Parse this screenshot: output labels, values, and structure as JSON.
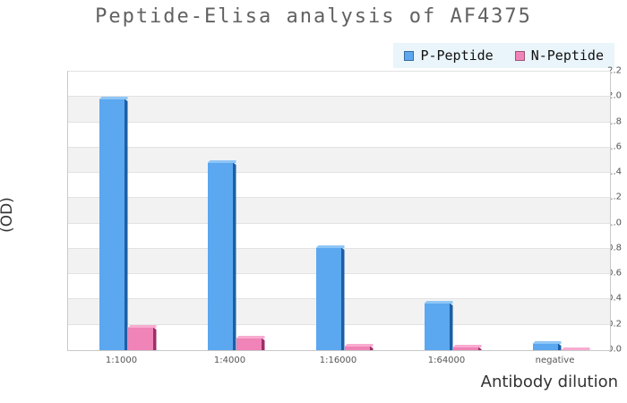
{
  "title": "Peptide-Elisa analysis of AF4375",
  "axes": {
    "ylabel": "(OD)",
    "xlabel": "Antibody dilution"
  },
  "legend": {
    "background": "#e9f5fa",
    "items": [
      "P-Peptide",
      "N-Peptide"
    ]
  },
  "style": {
    "band_colors": [
      "#ffffff",
      "#f2f2f2"
    ],
    "gridline_color": "#e2e2e2",
    "plot_border_color": "#c9c9c9",
    "title_color": "#616161",
    "tick_color": "#555555"
  },
  "chart_data": {
    "type": "bar",
    "title": "Peptide-Elisa analysis of AF4375",
    "categories": [
      "1:1000",
      "1:4000",
      "1:16000",
      "1:64000",
      "negative"
    ],
    "series": [
      {
        "name": "P-Peptide",
        "values": [
          2.0,
          1.5,
          0.83,
          0.39,
          0.07
        ],
        "color": "#5ba7f0",
        "color_dark": "#1b5fa5",
        "color_light": "#8ec6f6"
      },
      {
        "name": "N-Peptide",
        "values": [
          0.2,
          0.11,
          0.05,
          0.04,
          0.02
        ],
        "color": "#f083b7",
        "color_dark": "#9e2f66",
        "color_light": "#f8abd0"
      }
    ],
    "xlabel": "Antibody dilution",
    "ylabel": "(OD)",
    "ylim": [
      0,
      2.2
    ],
    "ytick_step": 0.2,
    "grid": true,
    "band_fill": "alternating",
    "legend_position": "top-right",
    "bar_style": "3d"
  }
}
